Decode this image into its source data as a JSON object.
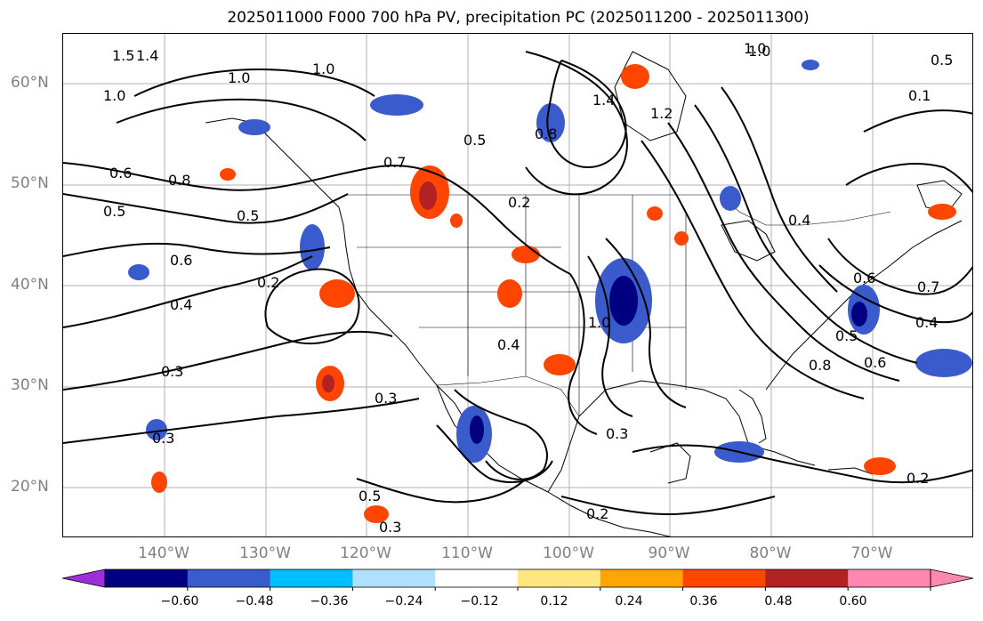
{
  "title": "2025011000 F000 700 hPa PV, precipitation PC (2025011200 - 2025011300)",
  "map": {
    "projection": "lat-lon",
    "lon_range": [
      -150,
      -60
    ],
    "lat_range": [
      15,
      65
    ],
    "gridlines": true,
    "lat_labels": [
      "60°N",
      "50°N",
      "40°N",
      "30°N",
      "20°N"
    ],
    "lon_labels": [
      "140°W",
      "130°W",
      "120°W",
      "110°W",
      "100°W",
      "90°W",
      "80°W",
      "70°W"
    ],
    "contour_labels": [
      "1.4",
      "1.5",
      "1.0",
      "1.0",
      "1.0",
      "1.0",
      "0.8",
      "0.5",
      "1.4",
      "1.2",
      "1.0",
      "0.5",
      "0.7",
      "0.6",
      "0.8",
      "0.5",
      "0.5",
      "0.6",
      "0.2",
      "0.4",
      "0.2",
      "0.3",
      "0.3",
      "0.4",
      "1.0",
      "0.3",
      "0.3",
      "0.5",
      "0.2",
      "0.3",
      "0.2",
      "0.6",
      "0.7",
      "0.4",
      "0.5",
      "0.6",
      "0.8",
      "0.1",
      "0.4"
    ]
  },
  "colorbar": {
    "ticks": [
      "−0.60",
      "−0.48",
      "−0.36",
      "−0.24",
      "−0.12",
      "0.12",
      "0.24",
      "0.36",
      "0.48",
      "0.60"
    ],
    "colors": [
      "#9b30d9",
      "#000080",
      "#3a5bcc",
      "#00bfff",
      "#b0e0ff",
      "#ffffff",
      "#ffe680",
      "#ffa500",
      "#ff4500",
      "#b22222",
      "#ff88b0",
      "#ff88b0"
    ]
  }
}
